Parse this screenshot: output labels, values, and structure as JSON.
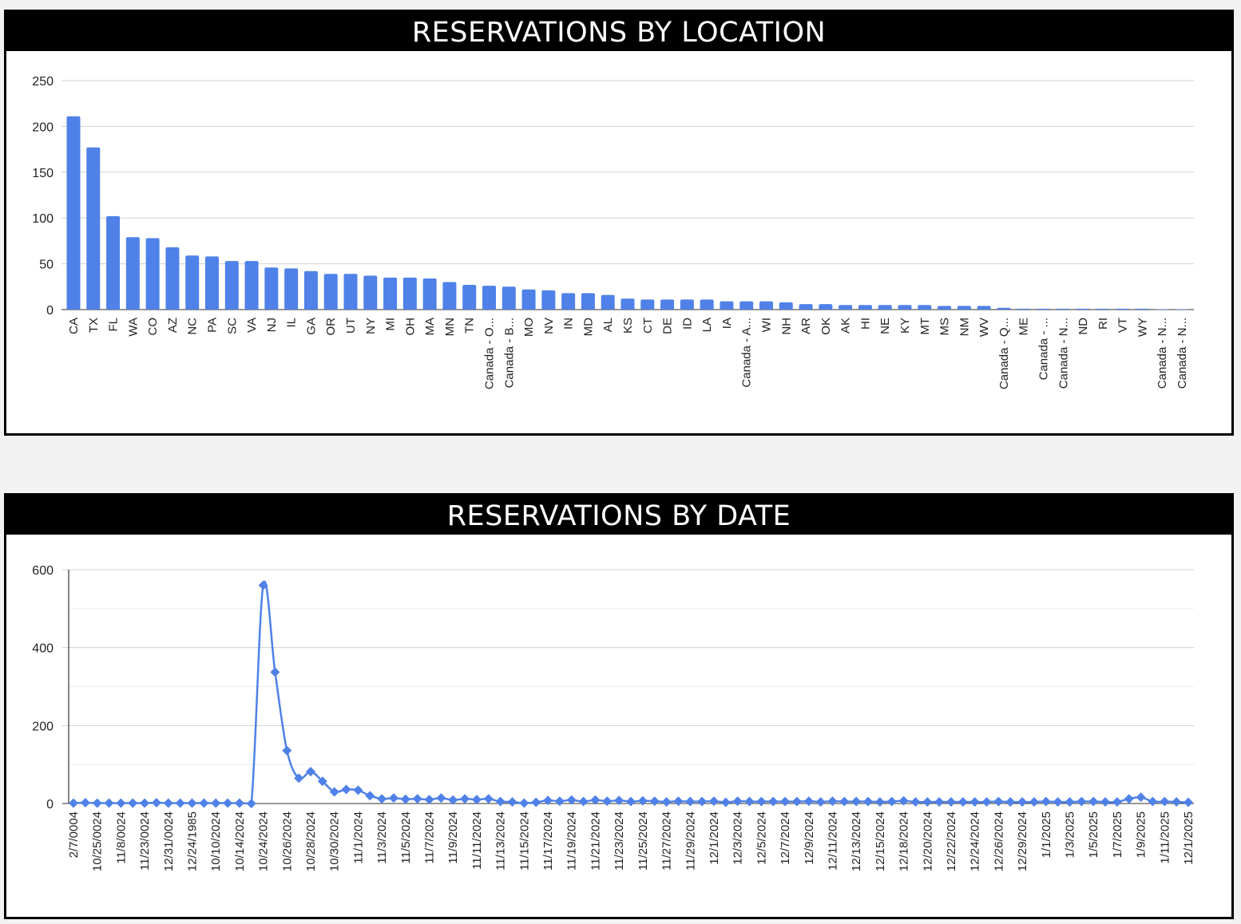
{
  "chart_data": [
    {
      "type": "bar",
      "title": "RESERVATIONS BY LOCATION",
      "xlabel": "",
      "ylabel": "",
      "ylim": [
        0,
        250
      ],
      "yticks": [
        0,
        50,
        100,
        150,
        200,
        250
      ],
      "grid": true,
      "color": "#4f81e8",
      "categories": [
        "CA",
        "TX",
        "FL",
        "WA",
        "CO",
        "AZ",
        "NC",
        "PA",
        "SC",
        "VA",
        "NJ",
        "IL",
        "GA",
        "OR",
        "UT",
        "NY",
        "MI",
        "OH",
        "MA",
        "MN",
        "TN",
        "Canada - O...",
        "Canada - B...",
        "MO",
        "NV",
        "IN",
        "MD",
        "AL",
        "KS",
        "CT",
        "DE",
        "ID",
        "LA",
        "IA",
        "Canada - A...",
        "WI",
        "NH",
        "AR",
        "OK",
        "AK",
        "HI",
        "NE",
        "KY",
        "MT",
        "MS",
        "NM",
        "WV",
        "Canada - Q...",
        "ME",
        "Canada - ...",
        "Canada - N...",
        "ND",
        "RI",
        "VT",
        "WY",
        "Canada - N...",
        "Canada - N..."
      ],
      "values": [
        211,
        177,
        102,
        79,
        78,
        68,
        59,
        58,
        53,
        53,
        46,
        45,
        42,
        39,
        39,
        37,
        35,
        35,
        34,
        30,
        27,
        26,
        25,
        22,
        21,
        18,
        18,
        16,
        12,
        11,
        11,
        11,
        11,
        9,
        9,
        9,
        8,
        6,
        6,
        5,
        5,
        5,
        5,
        5,
        4,
        4,
        4,
        2,
        1,
        1,
        1,
        1,
        1,
        1,
        1,
        0.3,
        0.3
      ]
    },
    {
      "type": "line",
      "title": "RESERVATIONS BY DATE",
      "xlabel": "",
      "ylabel": "",
      "ylim": [
        0,
        600
      ],
      "yticks": [
        0,
        200,
        400,
        600
      ],
      "grid": true,
      "color": "#4f81e8",
      "marker": "diamond",
      "x_labels": [
        "2/7/0004",
        "10/25/0024",
        "11/8/0024",
        "11/23/0024",
        "12/31/0024",
        "12/24/1985",
        "10/10/2024",
        "10/14/2024",
        "10/24/2024",
        "10/26/2024",
        "10/28/2024",
        "10/30/2024",
        "11/1/2024",
        "11/3/2024",
        "11/5/2024",
        "11/7/2024",
        "11/9/2024",
        "11/11/2024",
        "11/13/2024",
        "11/15/2024",
        "11/17/2024",
        "11/19/2024",
        "11/21/2024",
        "11/23/2024",
        "11/25/2024",
        "11/27/2024",
        "11/29/2024",
        "12/1/2024",
        "12/3/2024",
        "12/5/2024",
        "12/7/2024",
        "12/9/2024",
        "12/11/2024",
        "12/13/2024",
        "12/15/2024",
        "12/18/2024",
        "12/20/2024",
        "12/22/2024",
        "12/24/2024",
        "12/26/2024",
        "12/29/2024",
        "1/1/2025",
        "1/3/2025",
        "1/5/2025",
        "1/7/2025",
        "1/9/2025",
        "1/11/2025",
        "12/1/2025"
      ],
      "values": [
        1,
        2,
        1,
        1,
        1,
        1,
        1,
        2,
        1,
        1,
        1,
        1,
        1,
        1,
        1,
        0,
        560,
        337,
        136,
        65,
        82,
        57,
        30,
        36,
        34,
        20,
        12,
        14,
        11,
        12,
        10,
        14,
        9,
        12,
        10,
        12,
        5,
        4,
        1,
        3,
        8,
        6,
        9,
        5,
        9,
        6,
        8,
        5,
        7,
        6,
        4,
        6,
        5,
        5,
        6,
        3,
        6,
        5,
        5,
        5,
        5,
        5,
        6,
        4,
        6,
        5,
        5,
        5,
        4,
        5,
        7,
        4,
        4,
        4,
        4,
        4,
        4,
        4,
        5,
        4,
        4,
        4,
        5,
        4,
        4,
        5,
        5,
        4,
        4,
        12,
        16,
        5,
        5,
        4,
        3
      ]
    }
  ]
}
